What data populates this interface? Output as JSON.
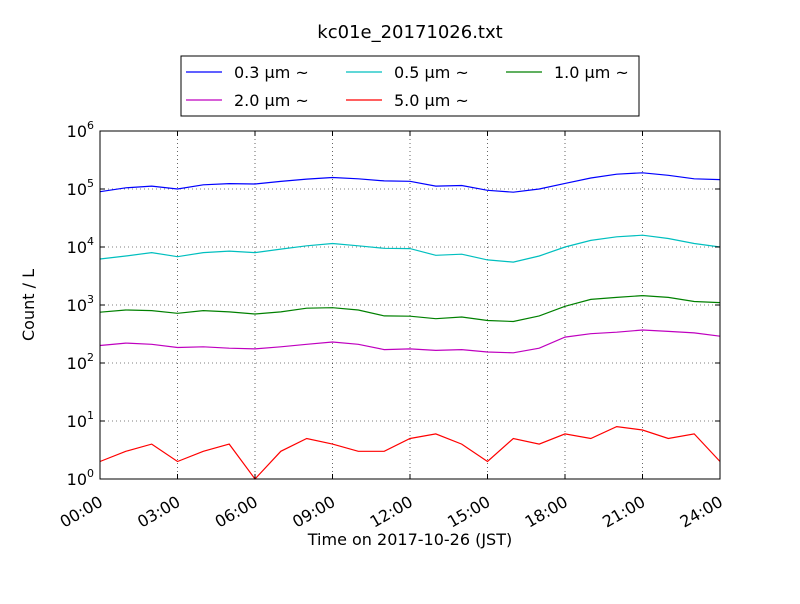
{
  "chart_data": {
    "type": "line",
    "title": "kc01e_20171026.txt",
    "xlabel": "Time on 2017-10-26 (JST)",
    "ylabel": "Count / L",
    "yscale": "log",
    "ylim": [
      1,
      1000000
    ],
    "xlim": [
      "00:00",
      "24:00"
    ],
    "x_ticks": [
      "00:00",
      "03:00",
      "06:00",
      "09:00",
      "12:00",
      "15:00",
      "18:00",
      "21:00",
      "24:00"
    ],
    "y_ticks": [
      {
        "base": "10",
        "exp": "0"
      },
      {
        "base": "10",
        "exp": "1"
      },
      {
        "base": "10",
        "exp": "2"
      },
      {
        "base": "10",
        "exp": "3"
      },
      {
        "base": "10",
        "exp": "4"
      },
      {
        "base": "10",
        "exp": "5"
      },
      {
        "base": "10",
        "exp": "6"
      }
    ],
    "grid": true,
    "legend_position": "top-center",
    "x": [
      "00:00",
      "01:00",
      "02:00",
      "03:00",
      "04:00",
      "05:00",
      "06:00",
      "07:00",
      "08:00",
      "09:00",
      "10:00",
      "11:00",
      "12:00",
      "13:00",
      "14:00",
      "15:00",
      "16:00",
      "17:00",
      "18:00",
      "19:00",
      "20:00",
      "21:00",
      "22:00",
      "23:00",
      "24:00"
    ],
    "series": [
      {
        "name": "0.3 μm ~",
        "color": "#0000ff",
        "values": [
          90000,
          105000,
          112000,
          100000,
          118000,
          124000,
          122000,
          135000,
          148000,
          158000,
          150000,
          138000,
          136000,
          112000,
          115000,
          95000,
          88000,
          100000,
          125000,
          155000,
          180000,
          190000,
          172000,
          150000,
          145000
        ]
      },
      {
        "name": "0.5 μm ~",
        "color": "#00bfbf",
        "values": [
          6200,
          7000,
          8000,
          6800,
          8000,
          8500,
          8000,
          9200,
          10500,
          11500,
          10500,
          9500,
          9400,
          7200,
          7500,
          6000,
          5500,
          7000,
          10000,
          13000,
          15000,
          16000,
          14000,
          11500,
          10000
        ]
      },
      {
        "name": "1.0 μm ~",
        "color": "#008000",
        "values": [
          750,
          820,
          800,
          720,
          800,
          760,
          700,
          760,
          880,
          900,
          820,
          650,
          640,
          580,
          620,
          540,
          520,
          650,
          950,
          1250,
          1350,
          1450,
          1350,
          1150,
          1100
        ]
      },
      {
        "name": "2.0 μm ~",
        "color": "#bf00bf",
        "values": [
          200,
          220,
          210,
          185,
          190,
          180,
          175,
          190,
          210,
          230,
          210,
          170,
          175,
          165,
          170,
          155,
          150,
          180,
          280,
          320,
          340,
          370,
          350,
          330,
          290
        ]
      },
      {
        "name": "5.0 μm ~",
        "color": "#ff0000",
        "values": [
          2,
          3,
          4,
          2,
          3,
          4,
          1,
          3,
          5,
          4,
          3,
          3,
          5,
          6,
          4,
          2,
          5,
          4,
          6,
          5,
          8,
          7,
          5,
          6,
          2
        ]
      }
    ]
  }
}
